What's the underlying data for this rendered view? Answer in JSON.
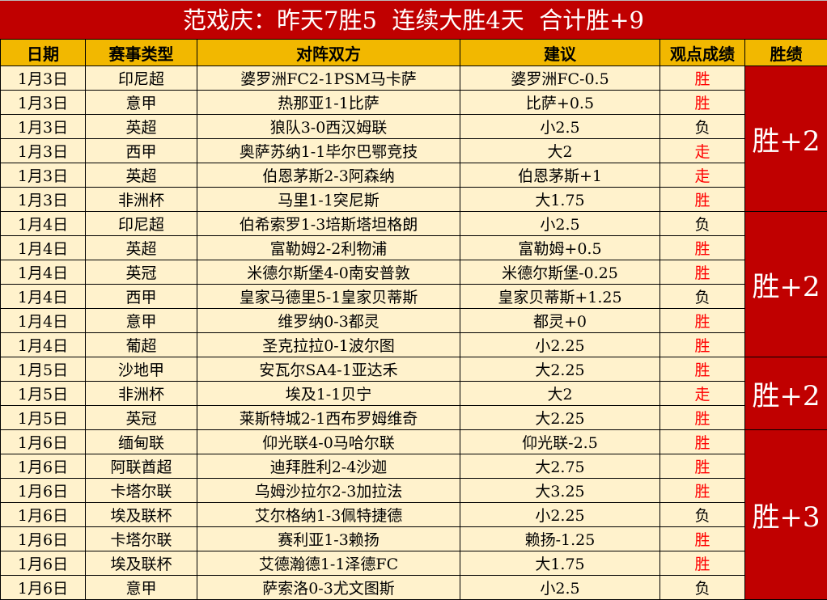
{
  "title": "范戏庆：昨天7胜5  连续大胜4天  合计胜+9",
  "colors": {
    "title_bg": "#c00000",
    "header_bg": "#f2b800",
    "row_bg": "#fff2cc",
    "win_text": "#ff0000"
  },
  "headers": [
    "日期",
    "赛事类型",
    "对阵双方",
    "建议",
    "观点成绩",
    "胜绩"
  ],
  "rows": [
    {
      "date": "1月3日",
      "league": "印尼超",
      "match": "婆罗洲FC2-1PSM马卡萨",
      "tip": "婆罗洲FC-0.5",
      "result": "胜"
    },
    {
      "date": "1月3日",
      "league": "意甲",
      "match": "热那亚1-1比萨",
      "tip": "比萨+0.5",
      "result": "胜"
    },
    {
      "date": "1月3日",
      "league": "英超",
      "match": "狼队3-0西汉姆联",
      "tip": "小2.5",
      "result": "负"
    },
    {
      "date": "1月3日",
      "league": "西甲",
      "match": "奥萨苏纳1-1毕尔巴鄂竞技",
      "tip": "大2",
      "result": "走"
    },
    {
      "date": "1月3日",
      "league": "英超",
      "match": "伯恩茅斯2-3阿森纳",
      "tip": "伯恩茅斯+1",
      "result": "走"
    },
    {
      "date": "1月3日",
      "league": "非洲杯",
      "match": "马里1-1突尼斯",
      "tip": "大1.75",
      "result": "胜"
    },
    {
      "date": "1月4日",
      "league": "印尼超",
      "match": "伯希索罗1-3培斯塔坦格朗",
      "tip": "小2.5",
      "result": "负"
    },
    {
      "date": "1月4日",
      "league": "英超",
      "match": "富勒姆2-2利物浦",
      "tip": "富勒姆+0.5",
      "result": "胜"
    },
    {
      "date": "1月4日",
      "league": "英冠",
      "match": "米德尔斯堡4-0南安普敦",
      "tip": "米德尔斯堡-0.25",
      "result": "胜"
    },
    {
      "date": "1月4日",
      "league": "西甲",
      "match": "皇家马德里5-1皇家贝蒂斯",
      "tip": "皇家贝蒂斯+1.25",
      "result": "负"
    },
    {
      "date": "1月4日",
      "league": "意甲",
      "match": "维罗纳0-3都灵",
      "tip": "都灵+0",
      "result": "胜"
    },
    {
      "date": "1月4日",
      "league": "葡超",
      "match": "圣克拉拉0-1波尔图",
      "tip": "小2.25",
      "result": "胜"
    },
    {
      "date": "1月5日",
      "league": "沙地甲",
      "match": "安瓦尔SA4-1亚达禾",
      "tip": "大2.25",
      "result": "胜"
    },
    {
      "date": "1月5日",
      "league": "非洲杯",
      "match": "埃及1-1贝宁",
      "tip": "大2",
      "result": "走"
    },
    {
      "date": "1月5日",
      "league": "英冠",
      "match": "莱斯特城2-1西布罗姆维奇",
      "tip": "大2.25",
      "result": "胜"
    },
    {
      "date": "1月6日",
      "league": "缅甸联",
      "match": "仰光联4-0马哈尔联",
      "tip": "仰光联-2.5",
      "result": "胜"
    },
    {
      "date": "1月6日",
      "league": "阿联酋超",
      "match": "迪拜胜利2-4沙迦",
      "tip": "大2.75",
      "result": "胜"
    },
    {
      "date": "1月6日",
      "league": "卡塔尔联",
      "match": "乌姆沙拉尔2-3加拉法",
      "tip": "大3.25",
      "result": "胜"
    },
    {
      "date": "1月6日",
      "league": "埃及联杯",
      "match": "艾尔格纳1-3佩特捷德",
      "tip": "小2.25",
      "result": "负"
    },
    {
      "date": "1月6日",
      "league": "卡塔尔联",
      "match": "赛利亚1-3赖扬",
      "tip": "赖扬-1.25",
      "result": "胜"
    },
    {
      "date": "1月6日",
      "league": "埃及联杯",
      "match": "艾德瀚德1-1泽德FC",
      "tip": "大1.75",
      "result": "胜"
    },
    {
      "date": "1月6日",
      "league": "意甲",
      "match": "萨索洛0-3尤文图斯",
      "tip": "小2.5",
      "result": "负"
    }
  ],
  "groups": [
    {
      "rows": 6,
      "total": "胜+2"
    },
    {
      "rows": 6,
      "total": "胜+2"
    },
    {
      "rows": 3,
      "total": "胜+2"
    },
    {
      "rows": 7,
      "total": "胜+3"
    }
  ]
}
